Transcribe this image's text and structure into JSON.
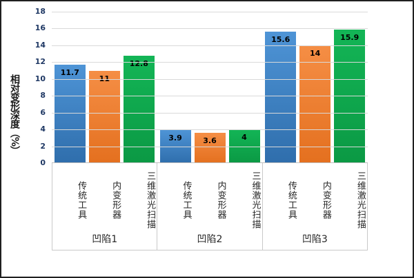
{
  "chart_data": {
    "type": "bar",
    "title": "",
    "xlabel": "",
    "ylabel": "相对变形深度（%）",
    "ylim": [
      0,
      18
    ],
    "yticks": [
      0,
      2,
      4,
      6,
      8,
      10,
      12,
      14,
      16,
      18
    ],
    "grid": true,
    "legend_position": "none",
    "categories": [
      "凹陷1",
      "凹陷2",
      "凹陷3"
    ],
    "series": [
      {
        "name": "传统工具",
        "values": [
          11.7,
          3.9,
          15.6
        ],
        "labels": [
          "11.7",
          "3.9",
          "15.6"
        ],
        "fill_top": "#4E94D6",
        "fill_bottom": "#2F6EAC"
      },
      {
        "name": "内变形器",
        "values": [
          11,
          3.6,
          14
        ],
        "labels": [
          "11",
          "3.6",
          "14"
        ],
        "fill_top": "#F58E45",
        "fill_bottom": "#E4701F"
      },
      {
        "name": "三维激光扫描",
        "values": [
          12.8,
          4,
          15.9
        ],
        "labels": [
          "12.8",
          "4",
          "15.9"
        ],
        "fill_top": "#13B556",
        "fill_bottom": "#0B9944"
      }
    ],
    "colors": {
      "tick_label": "#1F3864",
      "gridline": "#D9D9D9",
      "axis_line": "#BFBFBF",
      "separator": "#C9C9C9",
      "category_text": "#262626",
      "frame_border": "#1F1F1F"
    }
  }
}
